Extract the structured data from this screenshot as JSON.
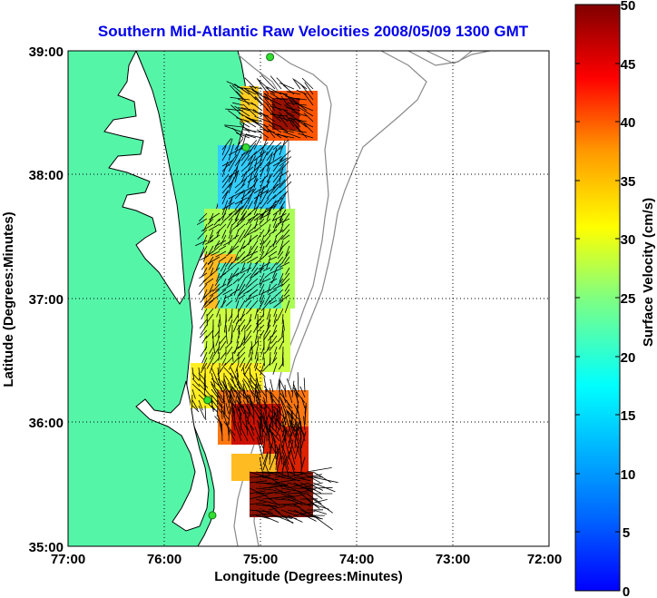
{
  "title": "Southern Mid-Atlantic Raw Velocities 2008/05/09 1300 GMT",
  "xlabel": "Longitude (Degrees:Minutes)",
  "ylabel": "Latitude (Degrees:Minutes)",
  "x_ticks": [
    "77:00",
    "76:00",
    "75:00",
    "74:00",
    "73:00",
    "72:00"
  ],
  "y_ticks": [
    "39:00",
    "38:00",
    "37:00",
    "36:00",
    "35:00"
  ],
  "colorbar": {
    "label": "Surface Velocity (cm/s)",
    "ticks": [
      "50",
      "45",
      "40",
      "35",
      "30",
      "25",
      "20",
      "15",
      "10",
      "5",
      "0"
    ],
    "min": 0,
    "max": 50
  },
  "colors": {
    "land": "#55f5a8",
    "coastline": "#000000",
    "bathymetry": "#8a8a8a",
    "station": "#33dd33",
    "vectors": "#000000"
  },
  "map": {
    "lon_range": [
      -77,
      -72
    ],
    "lat_range": [
      35,
      39
    ],
    "grid": "dotted",
    "stations": [
      {
        "lon": -74.9,
        "lat": 38.95
      },
      {
        "lon": -75.15,
        "lat": 38.22
      },
      {
        "lon": -75.55,
        "lat": 36.18
      },
      {
        "lon": -75.5,
        "lat": 35.25
      }
    ]
  }
}
